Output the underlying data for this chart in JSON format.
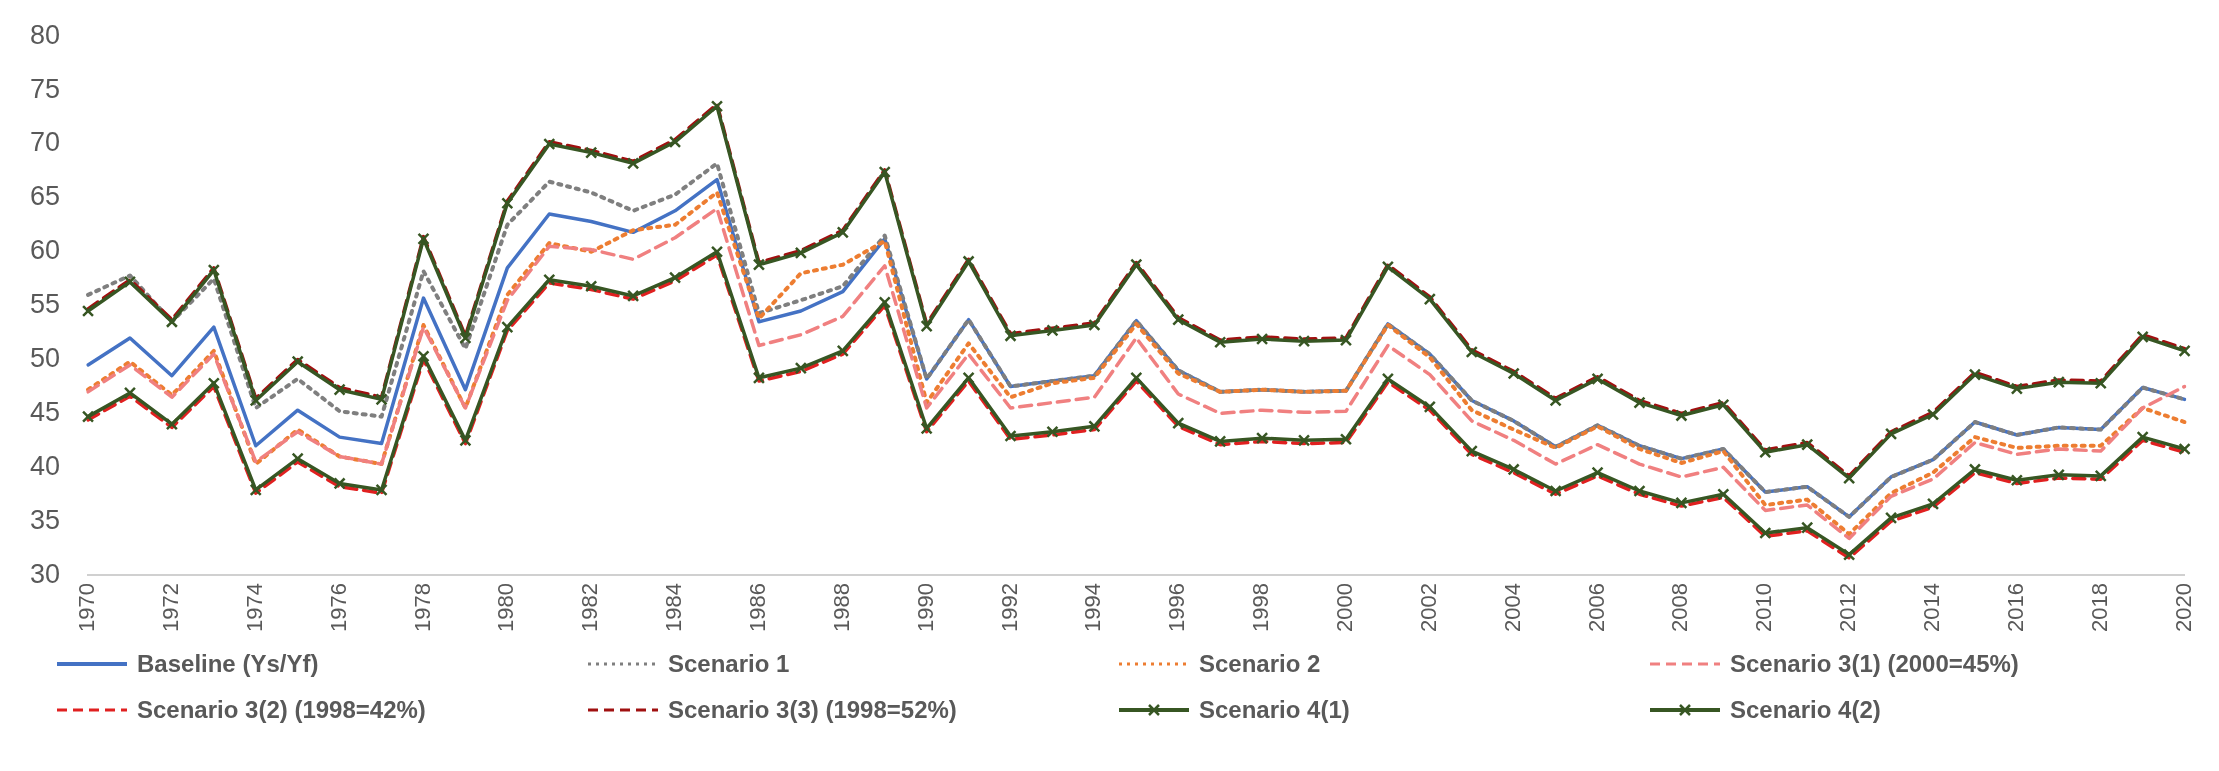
{
  "chart_data": {
    "type": "line",
    "categories": [
      "1970",
      null,
      "1972",
      null,
      "1974",
      null,
      "1976",
      null,
      "1978",
      null,
      "1980",
      null,
      "1982",
      null,
      "1984",
      null,
      "1986",
      null,
      "1988",
      null,
      "1990",
      null,
      "1992",
      null,
      "1994",
      null,
      "1996",
      null,
      "1998",
      null,
      "2000",
      null,
      "2002",
      null,
      "2004",
      null,
      "2006",
      null,
      "2008",
      null,
      "2010",
      null,
      "2012",
      null,
      "2014",
      null,
      "2016",
      null,
      "2018",
      null,
      "2020"
    ],
    "ylim": [
      30,
      80
    ],
    "yticks": [
      30,
      35,
      40,
      45,
      50,
      55,
      60,
      65,
      70,
      75,
      80
    ],
    "grid": false,
    "legend": "bottom",
    "marker": "none",
    "series": [
      {
        "name": "Baseline (Ys/Yf)",
        "color": "#4472c4",
        "line_style": "solid",
        "values": [
          49.5,
          52,
          48.5,
          53,
          42,
          45.3,
          42.8,
          42.2,
          55.7,
          47.2,
          58.5,
          63.5,
          62.8,
          61.8,
          63.8,
          66.7,
          53.5,
          54.5,
          56.3,
          61.2,
          48.2,
          53.7,
          47.5,
          48,
          48.5,
          53.6,
          49,
          47,
          47.2,
          47,
          47.1,
          53.3,
          50.5,
          46.2,
          44.3,
          41.9,
          43.9,
          42,
          40.8,
          41.7,
          37.7,
          38.2,
          35.4,
          39.1,
          40.7,
          44.2,
          43,
          43.7,
          43.5,
          47.4,
          46.3
        ]
      },
      {
        "name": "Scenario 1",
        "color": "#7f7f7f",
        "line_style": "dotted",
        "values": [
          56,
          57.8,
          53.5,
          57.5,
          45.5,
          48.2,
          45.2,
          44.7,
          58.2,
          51,
          62.5,
          66.5,
          65.5,
          63.8,
          65.3,
          68.2,
          54.3,
          55.5,
          56.8,
          61.5,
          48.2,
          53.7,
          47.5,
          48,
          48.5,
          53.6,
          49,
          47,
          47.2,
          47,
          47.1,
          53.3,
          50.5,
          46.2,
          44.3,
          41.9,
          43.9,
          42,
          40.8,
          41.7,
          37.7,
          38.2,
          35.4,
          39.1,
          40.7,
          44.2,
          43,
          43.7,
          43.5,
          47.4,
          46.3
        ]
      },
      {
        "name": "Scenario 2",
        "color": "#ed7d31",
        "line_style": "dotted",
        "values": [
          47.2,
          49.8,
          46.7,
          50.8,
          40.3,
          43.5,
          41,
          40.3,
          53.2,
          45.5,
          56,
          60.8,
          60,
          62,
          62.5,
          65.5,
          53.8,
          58,
          58.8,
          61,
          46,
          51.5,
          46.5,
          47.8,
          48.3,
          53.3,
          48.7,
          47,
          47.2,
          47,
          47.1,
          53.2,
          50.2,
          45.3,
          43.5,
          41.8,
          43.8,
          41.7,
          40.4,
          41.5,
          36.5,
          37,
          33.8,
          37.6,
          39.5,
          42.8,
          41.8,
          42,
          42,
          45.5,
          44.2
        ]
      },
      {
        "name": "Scenario 3(1) (2000=45%)",
        "color": "#f08080",
        "line_style": "dashed",
        "values": [
          47,
          49.5,
          46.5,
          50.5,
          40.5,
          43.3,
          41,
          40.3,
          53,
          45.5,
          55.5,
          60.5,
          60.2,
          59.3,
          61.3,
          64,
          51.3,
          52.3,
          54,
          58.7,
          45.5,
          50.5,
          45.5,
          46,
          46.5,
          52,
          46.8,
          45,
          45.3,
          45.1,
          45.2,
          51.3,
          48.6,
          44.3,
          42.5,
          40.3,
          42.1,
          40.3,
          39.1,
          40,
          36,
          36.5,
          33.4,
          37.3,
          38.9,
          42.3,
          41.2,
          41.7,
          41.5,
          45.5,
          47.5
        ]
      },
      {
        "name": "Scenario 3(2) (1998=42%)",
        "color": "#e02020",
        "line_style": "dashed",
        "values": [
          44.4,
          46.6,
          43.7,
          47.5,
          37.6,
          40.5,
          38.2,
          37.6,
          50,
          42.2,
          52.7,
          57.1,
          56.5,
          55.6,
          57.3,
          59.7,
          48,
          48.9,
          50.5,
          55,
          43.3,
          48,
          42.6,
          43,
          43.5,
          48,
          43.8,
          42.1,
          42.4,
          42.2,
          42.3,
          47.9,
          45.3,
          41.2,
          39.5,
          37.5,
          39.2,
          37.5,
          36.4,
          37.2,
          33.6,
          34.1,
          31.6,
          35,
          36.3,
          39.5,
          38.5,
          39,
          38.9,
          42.5,
          41.4
        ]
      },
      {
        "name": "Scenario 3(3) (1998=52%)",
        "color": "#a01010",
        "line_style": "dashed",
        "values": [
          54.7,
          57.4,
          53.7,
          58.5,
          46.4,
          50,
          47.4,
          46.5,
          61.4,
          52.2,
          64.7,
          70.2,
          69.4,
          68.4,
          70.4,
          73.7,
          59,
          60.1,
          62,
          67.6,
          53.3,
          59.3,
          52.4,
          52.9,
          53.4,
          59,
          53.9,
          51.8,
          52.1,
          51.9,
          52,
          58.8,
          55.8,
          50.9,
          48.9,
          46.4,
          48.4,
          46.2,
          45,
          46,
          41.6,
          42.3,
          39.2,
          43.3,
          45.1,
          48.8,
          47.5,
          48.1,
          48,
          52.3,
          51
        ]
      },
      {
        "name": "Scenario 4(1)",
        "color": "#375623",
        "line_style": "solid",
        "marker": "cross",
        "values": [
          54.5,
          57.2,
          53.5,
          58.3,
          46.2,
          49.8,
          47.2,
          46.3,
          61.2,
          52,
          64.5,
          70,
          69.2,
          68.2,
          70.2,
          73.5,
          58.8,
          59.9,
          61.8,
          67.4,
          53.1,
          59.1,
          52.2,
          52.7,
          53.2,
          58.8,
          53.7,
          51.6,
          51.9,
          51.7,
          51.8,
          58.6,
          55.6,
          50.7,
          48.7,
          46.2,
          48.2,
          46,
          44.8,
          45.8,
          41.4,
          42.1,
          39,
          43.1,
          44.9,
          48.6,
          47.3,
          47.9,
          47.8,
          52.1,
          50.8
        ]
      },
      {
        "name": "Scenario 4(2)",
        "color": "#375623",
        "line_style": "solid",
        "marker": "cross",
        "values": [
          44.7,
          46.9,
          44,
          47.8,
          37.9,
          40.8,
          38.5,
          37.9,
          50.3,
          42.5,
          53,
          57.4,
          56.8,
          55.9,
          57.6,
          60,
          48.3,
          49.2,
          50.8,
          55.3,
          43.6,
          48.3,
          42.9,
          43.3,
          43.8,
          48.3,
          44.1,
          42.4,
          42.7,
          42.5,
          42.6,
          48.2,
          45.6,
          41.5,
          39.8,
          37.8,
          39.5,
          37.8,
          36.7,
          37.5,
          33.9,
          34.4,
          31.9,
          35.3,
          36.6,
          39.8,
          38.8,
          39.3,
          39.2,
          42.8,
          41.7
        ]
      }
    ]
  }
}
